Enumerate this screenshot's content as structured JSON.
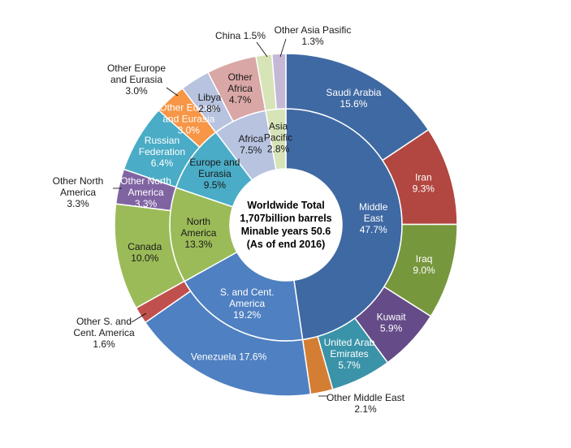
{
  "chart_data": {
    "type": "donut",
    "center_text": [
      "Worldwide Total",
      "1,707billion barrels",
      "Minable years 50.6",
      "(As of end 2016)"
    ],
    "inner_ring": [
      {
        "label": [
          "Middle",
          "East"
        ],
        "value": 47.7,
        "value_text": "47.7%",
        "color": "#3f69a3",
        "label_color": "#ffffff"
      },
      {
        "label": [
          "S. and Cent.",
          "America"
        ],
        "value": 19.2,
        "value_text": "19.2%",
        "color": "#4f80c1",
        "label_color": "#ffffff"
      },
      {
        "label": [
          "North",
          "America"
        ],
        "value": 13.3,
        "value_text": "13.3%",
        "color": "#9bbb58",
        "label_color": "#1a1a1a"
      },
      {
        "label": [
          "Europe and",
          "Eurasia"
        ],
        "value": 9.5,
        "value_text": "9.5%",
        "color": "#4aacc6",
        "label_color": "#1a1a1a"
      },
      {
        "label": [
          "Africa"
        ],
        "value": 7.5,
        "value_text": "7.5%",
        "color": "#b7c3df",
        "label_color": "#1a1a1a"
      },
      {
        "label": [
          "Asia",
          "Pacific"
        ],
        "value": 2.8,
        "value_text": "2.8%",
        "color": "#d6e4b8",
        "label_color": "#1a1a1a"
      }
    ],
    "outer_ring": [
      {
        "label": [
          "Saudi Arabia"
        ],
        "value": 15.6,
        "value_text": "15.6%",
        "color": "#3f69a3"
      },
      {
        "label": [
          "Iran"
        ],
        "value": 9.3,
        "value_text": "9.3%",
        "color": "#b24641"
      },
      {
        "label": [
          "Iraq"
        ],
        "value": 9.0,
        "value_text": "9.0%",
        "color": "#77973d"
      },
      {
        "label": [
          "Kuwait"
        ],
        "value": 5.9,
        "value_text": "5.9%",
        "color": "#654b87"
      },
      {
        "label": [
          "United Arab",
          "Emirates"
        ],
        "value": 5.7,
        "value_text": "5.7%",
        "color": "#3a93a8"
      },
      {
        "label": [
          "Other Middle East"
        ],
        "value": 2.1,
        "value_text": "2.1%",
        "color": "#d47e33"
      },
      {
        "label": [
          "Venezuela 17.6%"
        ],
        "value": 17.6,
        "value_text": "",
        "color": "#4f80c1"
      },
      {
        "label": [
          "Other S. and",
          "Cent. America"
        ],
        "value": 1.6,
        "value_text": "1.6%",
        "color": "#c0504d"
      },
      {
        "label": [
          "Canada"
        ],
        "value": 10.0,
        "value_text": "10.0%",
        "color": "#9bbb58"
      },
      {
        "label": [
          "Other North",
          "America"
        ],
        "value": 3.3,
        "value_text": "3.3%",
        "color": "#8064a2"
      },
      {
        "label": [
          "Russian",
          "Federation"
        ],
        "value": 6.4,
        "value_text": "6.4%",
        "color": "#4aacc6"
      },
      {
        "label": [
          "Other Europe",
          "and Eurasia"
        ],
        "value": 3.0,
        "value_text": "3.0%",
        "color": "#f79646"
      },
      {
        "label": [
          "Libya"
        ],
        "value": 2.8,
        "value_text": "2.8%",
        "color": "#b7c3df"
      },
      {
        "label": [
          "Other",
          "Africa"
        ],
        "value": 4.7,
        "value_text": "4.7%",
        "color": "#d9a7a6"
      },
      {
        "label": [
          "China 1.5%"
        ],
        "value": 1.5,
        "value_text": "",
        "color": "#d6e4b8"
      },
      {
        "label": [
          "Other Asia Pasific"
        ],
        "value": 1.3,
        "value_text": "1.3%",
        "color": "#c5b8d6"
      }
    ]
  }
}
